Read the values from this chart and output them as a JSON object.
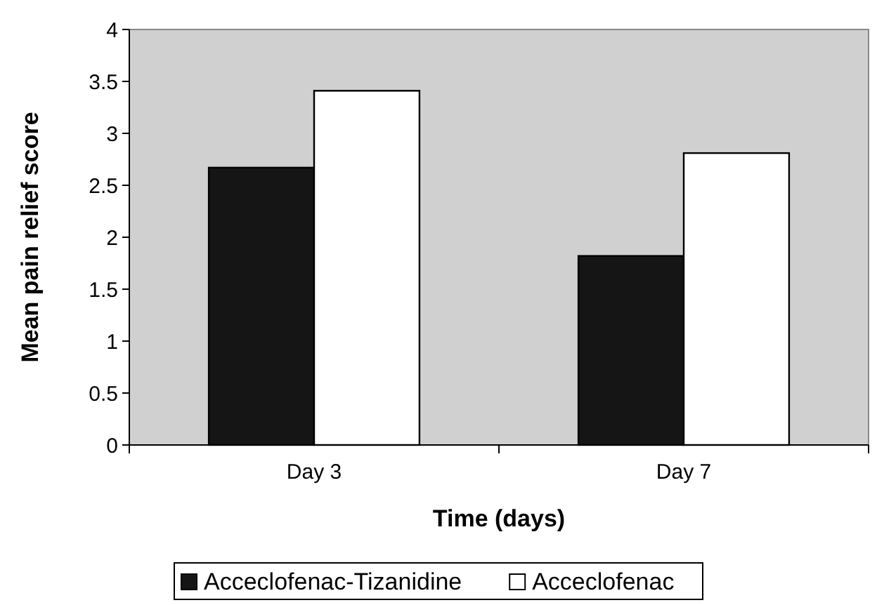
{
  "chart_data": {
    "type": "bar",
    "xlabel": "Time (days)",
    "ylabel": "Mean pain relief score",
    "categories": [
      "Day 3",
      "Day 7"
    ],
    "series": [
      {
        "name": "Acceclofenac-Tizanidine",
        "color": "#151515",
        "values": [
          2.67,
          1.82
        ]
      },
      {
        "name": "Acceclofenac",
        "color": "#ffffff",
        "values": [
          3.41,
          2.81
        ]
      }
    ],
    "ylim": [
      0,
      4
    ],
    "yticks": [
      0,
      0.5,
      1,
      1.5,
      2,
      2.5,
      3,
      3.5,
      4
    ],
    "legend": "bottom"
  }
}
